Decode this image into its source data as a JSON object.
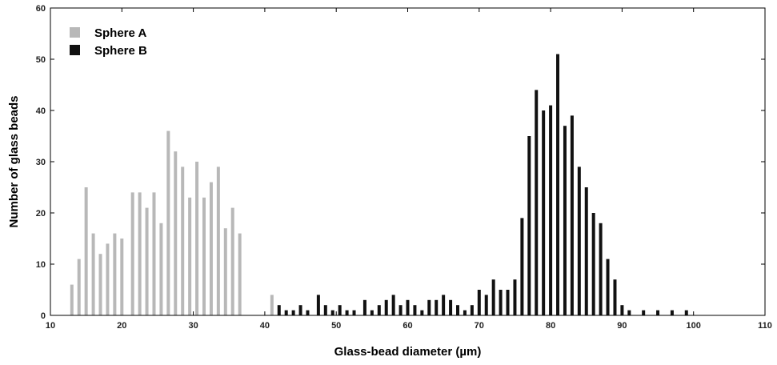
{
  "chart_data": {
    "type": "bar",
    "xlabel": "Glass-bead diameter (µm)",
    "ylabel": "Number of glass beads",
    "xlim": [
      10,
      110
    ],
    "ylim": [
      0,
      60
    ],
    "xticks": [
      10,
      20,
      30,
      40,
      50,
      60,
      70,
      80,
      90,
      100,
      110
    ],
    "yticks": [
      0,
      10,
      20,
      30,
      40,
      50,
      60
    ],
    "grid": false,
    "legend_position": "top-left",
    "series": [
      {
        "name": "Sphere A",
        "color": "#b8b8b8",
        "points": [
          {
            "x": 13,
            "y": 6
          },
          {
            "x": 14,
            "y": 11
          },
          {
            "x": 15,
            "y": 25
          },
          {
            "x": 16,
            "y": 16
          },
          {
            "x": 17,
            "y": 12
          },
          {
            "x": 18,
            "y": 14
          },
          {
            "x": 19,
            "y": 16
          },
          {
            "x": 20,
            "y": 15
          },
          {
            "x": 21.5,
            "y": 24
          },
          {
            "x": 22.5,
            "y": 24
          },
          {
            "x": 23.5,
            "y": 21
          },
          {
            "x": 24.5,
            "y": 24
          },
          {
            "x": 25.5,
            "y": 18
          },
          {
            "x": 26.5,
            "y": 36
          },
          {
            "x": 27.5,
            "y": 32
          },
          {
            "x": 28.5,
            "y": 29
          },
          {
            "x": 29.5,
            "y": 23
          },
          {
            "x": 30.5,
            "y": 30
          },
          {
            "x": 31.5,
            "y": 23
          },
          {
            "x": 32.5,
            "y": 26
          },
          {
            "x": 33.5,
            "y": 29
          },
          {
            "x": 34.5,
            "y": 17
          },
          {
            "x": 35.5,
            "y": 21
          },
          {
            "x": 36.5,
            "y": 16
          },
          {
            "x": 41,
            "y": 4
          }
        ]
      },
      {
        "name": "Sphere B",
        "color": "#111111",
        "points": [
          {
            "x": 42,
            "y": 2
          },
          {
            "x": 43,
            "y": 1
          },
          {
            "x": 44,
            "y": 1
          },
          {
            "x": 45,
            "y": 2
          },
          {
            "x": 46,
            "y": 1
          },
          {
            "x": 47.5,
            "y": 4
          },
          {
            "x": 48.5,
            "y": 2
          },
          {
            "x": 49.5,
            "y": 1
          },
          {
            "x": 50.5,
            "y": 2
          },
          {
            "x": 51.5,
            "y": 1
          },
          {
            "x": 52.5,
            "y": 1
          },
          {
            "x": 54,
            "y": 3
          },
          {
            "x": 55,
            "y": 1
          },
          {
            "x": 56,
            "y": 2
          },
          {
            "x": 57,
            "y": 3
          },
          {
            "x": 58,
            "y": 4
          },
          {
            "x": 59,
            "y": 2
          },
          {
            "x": 60,
            "y": 3
          },
          {
            "x": 61,
            "y": 2
          },
          {
            "x": 62,
            "y": 1
          },
          {
            "x": 63,
            "y": 3
          },
          {
            "x": 64,
            "y": 3
          },
          {
            "x": 65,
            "y": 4
          },
          {
            "x": 66,
            "y": 3
          },
          {
            "x": 67,
            "y": 2
          },
          {
            "x": 68,
            "y": 1
          },
          {
            "x": 69,
            "y": 2
          },
          {
            "x": 70,
            "y": 5
          },
          {
            "x": 71,
            "y": 4
          },
          {
            "x": 72,
            "y": 7
          },
          {
            "x": 73,
            "y": 5
          },
          {
            "x": 74,
            "y": 5
          },
          {
            "x": 75,
            "y": 7
          },
          {
            "x": 76,
            "y": 19
          },
          {
            "x": 77,
            "y": 35
          },
          {
            "x": 78,
            "y": 44
          },
          {
            "x": 79,
            "y": 40
          },
          {
            "x": 80,
            "y": 41
          },
          {
            "x": 81,
            "y": 51
          },
          {
            "x": 82,
            "y": 37
          },
          {
            "x": 83,
            "y": 39
          },
          {
            "x": 84,
            "y": 29
          },
          {
            "x": 85,
            "y": 25
          },
          {
            "x": 86,
            "y": 20
          },
          {
            "x": 87,
            "y": 18
          },
          {
            "x": 88,
            "y": 11
          },
          {
            "x": 89,
            "y": 7
          },
          {
            "x": 90,
            "y": 2
          },
          {
            "x": 91,
            "y": 1
          },
          {
            "x": 93,
            "y": 1
          },
          {
            "x": 95,
            "y": 1
          },
          {
            "x": 97,
            "y": 1
          },
          {
            "x": 99,
            "y": 1
          }
        ]
      }
    ]
  }
}
